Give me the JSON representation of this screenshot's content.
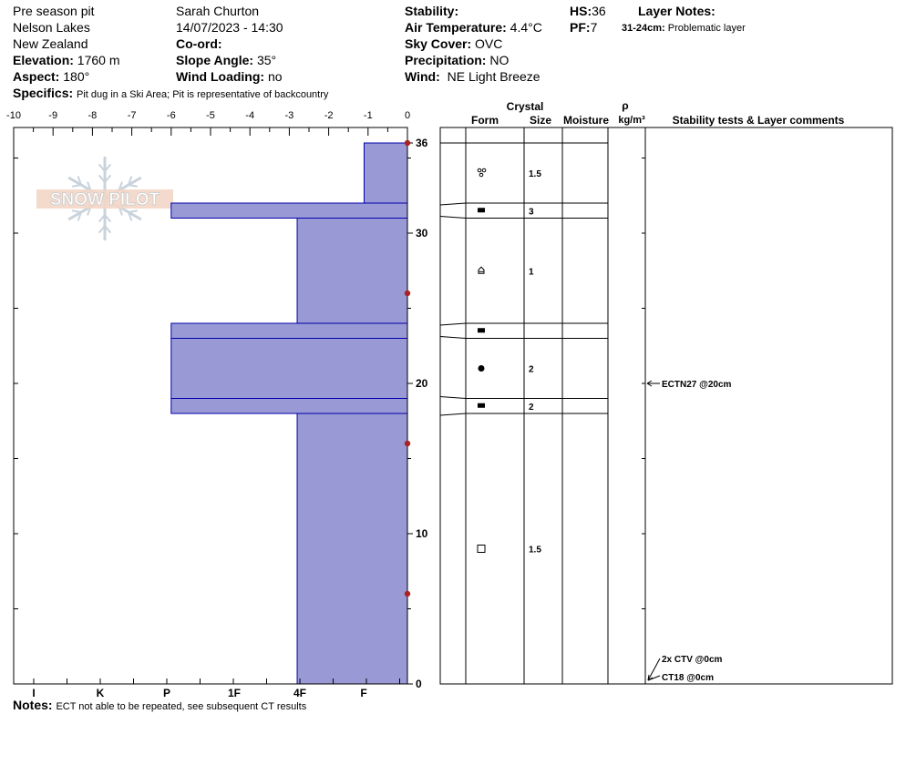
{
  "header": {
    "pit_name": "Pre season pit",
    "observer": "Sarah Churton",
    "location": "Nelson Lakes",
    "country": "New Zealand",
    "datetime": "14/07/2023 - 14:30",
    "elevation_label": "Elevation:",
    "elevation_value": "1760 m",
    "coord_label": "Co-ord:",
    "slope_label": "Slope Angle:",
    "slope_value": "35°",
    "aspect_label": "Aspect:",
    "aspect_value": "180°",
    "wind_loading_label": "Wind Loading:",
    "wind_loading_value": "no",
    "specifics_label": "Specifics:",
    "specifics_value": "Pit dug in a Ski Area; Pit is representative of backcountry",
    "stability_label": "Stability:",
    "air_temp_label": "Air Temperature:",
    "air_temp_value": "4.4°C",
    "sky_label": "Sky Cover:",
    "sky_value": "OVC",
    "precip_label": "Precipitation:",
    "precip_value": "NO",
    "wind_label": "Wind:",
    "wind_value": "NE Light Breeze",
    "hs_label": "HS:",
    "hs_value": "36",
    "pf_label": "PF:",
    "pf_value": "7",
    "layer_notes_label": "Layer Notes:",
    "layer_note_range": "31-24cm:",
    "layer_note_text": "Problematic layer",
    "notes_label": "Notes:",
    "notes_value": "ECT not able to be repeated, see subsequent CT results"
  },
  "logo_text": "SNOW PILOT",
  "table_headers": {
    "crystal": "Crystal",
    "form": "Form",
    "size": "Size",
    "moisture": "Moisture",
    "rho": "ρ",
    "density_unit": "kg/m³",
    "stability": "Stability tests & Layer comments"
  },
  "colors": {
    "hardness_fill": "#9999d6",
    "hardness_stroke": "#0000aa",
    "temp_marker": "#aa2222"
  },
  "chart_data": {
    "type": "bar",
    "x_top_label_ticks": [
      "-10",
      "-9",
      "-8",
      "-7",
      "-6",
      "-5",
      "-4",
      "-3",
      "-2",
      "-1",
      "0"
    ],
    "x_top_range": [
      -10,
      0
    ],
    "hardness_ticks": [
      "I",
      "K",
      "P",
      "1F",
      "4F",
      "F"
    ],
    "hardness_tick_values": [
      5,
      4,
      3,
      2,
      1,
      0
    ],
    "y_tick_labels": [
      "36",
      "30",
      "20",
      "10",
      "0"
    ],
    "y_tick_values": [
      36,
      30,
      20,
      10,
      0
    ],
    "ylim": [
      0,
      36
    ],
    "layers": [
      {
        "top": 36,
        "bottom": 32,
        "hardness": "F",
        "hardness_value": -1.1
      },
      {
        "top": 32,
        "bottom": 31,
        "hardness": "P",
        "hardness_value": -6.0
      },
      {
        "top": 31,
        "bottom": 24,
        "hardness": "4F",
        "hardness_value": -2.8
      },
      {
        "top": 24,
        "bottom": 23,
        "hardness": "P",
        "hardness_value": -6.0
      },
      {
        "top": 23,
        "bottom": 19,
        "hardness": "P",
        "hardness_value": -6.0
      },
      {
        "top": 19,
        "bottom": 18,
        "hardness": "P",
        "hardness_value": -6.0
      },
      {
        "top": 18,
        "bottom": 0,
        "hardness": "4F",
        "hardness_value": -2.8
      }
    ],
    "temperature_points": [
      {
        "depth": 36,
        "temp": 0
      },
      {
        "depth": 26,
        "temp": 0
      },
      {
        "depth": 16,
        "temp": 0
      },
      {
        "depth": 6,
        "temp": 0
      }
    ]
  },
  "crystal_rows": [
    {
      "y_mid": 34,
      "form_icon": "precip-particles-icon",
      "size": "1.5"
    },
    {
      "y_mid": 31.5,
      "form_icon": "faceted-icon",
      "size": "3"
    },
    {
      "y_mid": 27.5,
      "form_icon": "depth-hoar-icon",
      "size": "1"
    },
    {
      "y_mid": 23.5,
      "form_icon": "faceted-icon",
      "size": ""
    },
    {
      "y_mid": 21,
      "form_icon": "melt-form-icon",
      "size": "2"
    },
    {
      "y_mid": 18.5,
      "form_icon": "faceted-icon",
      "size": "2"
    },
    {
      "y_mid": 9,
      "form_icon": "rounded-facet-icon",
      "size": "1.5"
    }
  ],
  "layer_boundaries": [
    36,
    32,
    31,
    24,
    23,
    19,
    18,
    0
  ],
  "stability_tests": [
    {
      "label": "ECTN27 @20cm",
      "depth": 20
    },
    {
      "label": "2x CTV @0cm",
      "depth": 0
    },
    {
      "label": "CT18 @0cm",
      "depth": 0
    }
  ]
}
